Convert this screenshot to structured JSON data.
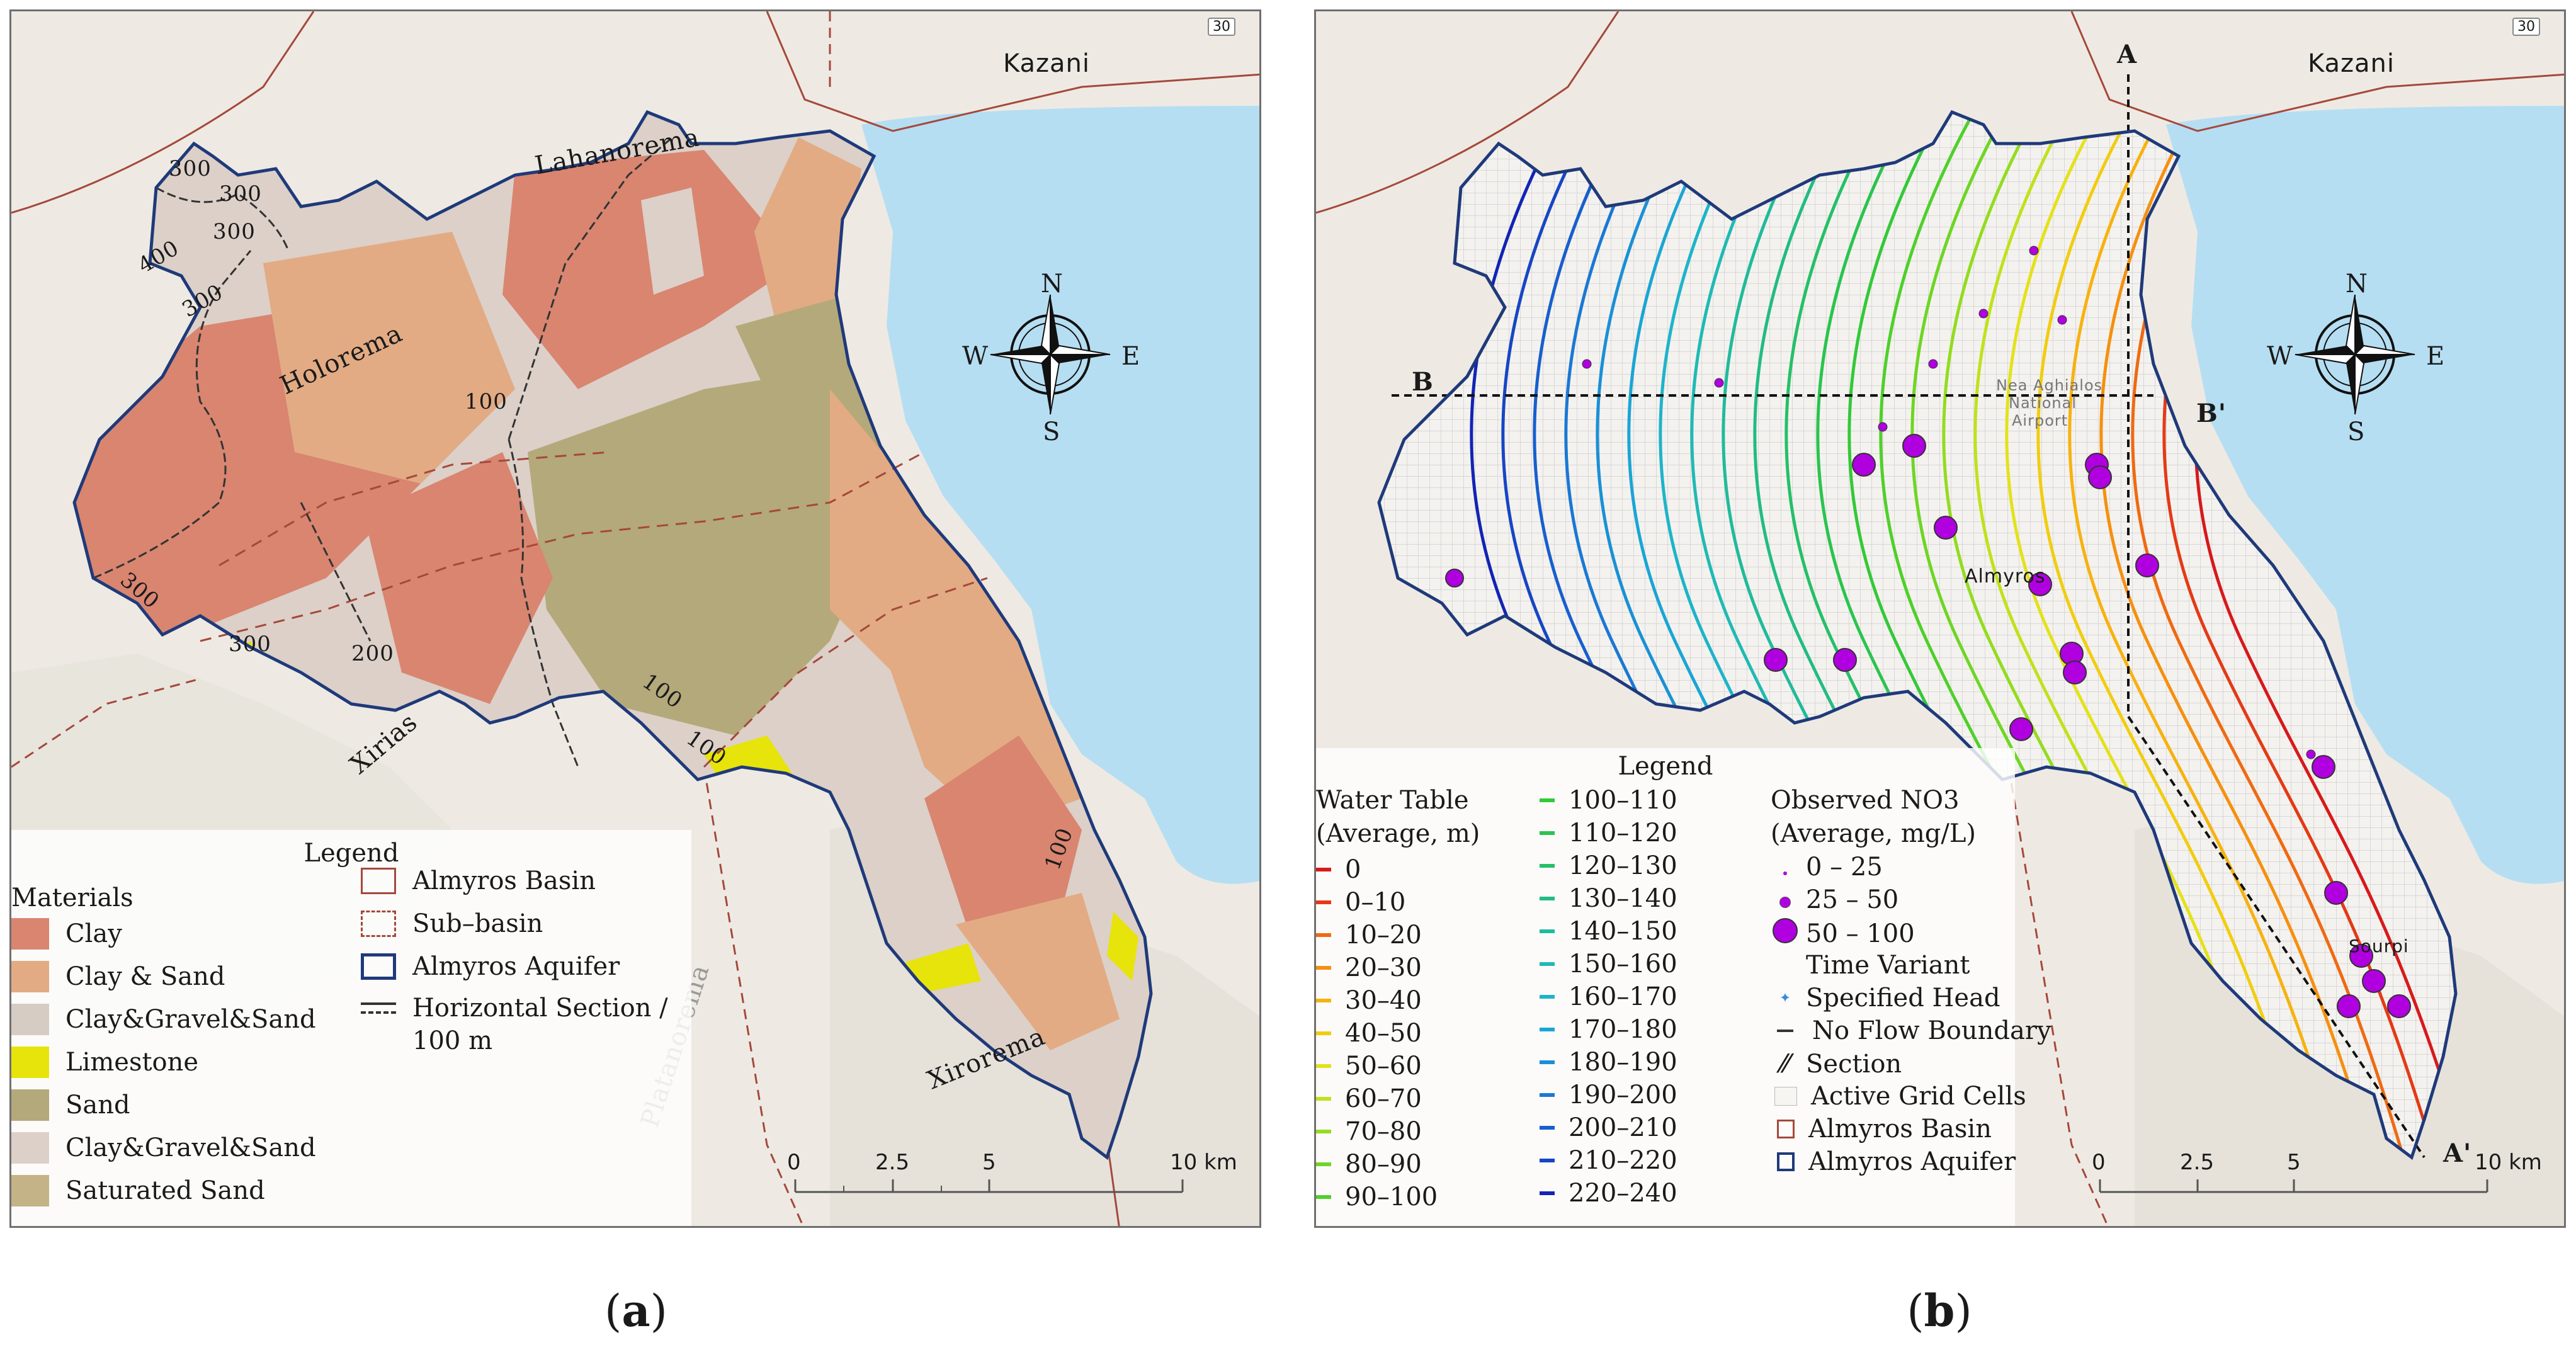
{
  "panel_a": {
    "caption_letter": "a",
    "legend": {
      "title": "Legend",
      "materials_title": "Materials",
      "materials": [
        {
          "label": "Clay",
          "color": "#d98570"
        },
        {
          "label": "Clay & Sand",
          "color": "#e2ab84"
        },
        {
          "label": "Clay&Gravel&Sand",
          "color": "#d7ccc4"
        },
        {
          "label": "Limestone",
          "color": "#e6e40a"
        },
        {
          "label": "Sand",
          "color": "#b4a97a"
        },
        {
          "label": "Clay&Gravel&Sand",
          "color": "#dcd0c8"
        },
        {
          "label": "Saturated Sand",
          "color": "#c3b386"
        }
      ],
      "boundaries": [
        {
          "label": "Almyros Basin",
          "color": "#a5483b"
        },
        {
          "label": "Sub–basin",
          "color": "#a5483b"
        },
        {
          "label": "Almyros Aquifer",
          "color": "#1f3a7a"
        }
      ],
      "section_line1": "Horizontal Section /",
      "section_line2": "100 m"
    },
    "place_labels": [
      "Kazani",
      "Lahanorema",
      "Holorema",
      "Xirias",
      "Platanorema",
      "Xirorema"
    ],
    "contour_labels": [
      "300",
      "300",
      "300",
      "400",
      "300",
      "100",
      "300",
      "300",
      "200",
      "100",
      "100",
      "100"
    ],
    "compass": [
      "N",
      "S",
      "W",
      "E"
    ],
    "scale": [
      "0",
      "2.5",
      "5",
      "10 km"
    ],
    "road_shield": "30"
  },
  "panel_b": {
    "caption_letter": "b",
    "legend": {
      "title": "Legend",
      "water_table_title_1": "Water Table",
      "water_table_title_2": "(Average, m)",
      "water_table": [
        {
          "label": "0",
          "color": "#d7191c"
        },
        {
          "label": "0–10",
          "color": "#e33a16"
        },
        {
          "label": "10–20",
          "color": "#ef6a12"
        },
        {
          "label": "20–30",
          "color": "#f5900f"
        },
        {
          "label": "30–40",
          "color": "#f7b20f"
        },
        {
          "label": "40–50",
          "color": "#f1cd10"
        },
        {
          "label": "50–60",
          "color": "#e3e21a"
        },
        {
          "label": "60–70",
          "color": "#bfe21c"
        },
        {
          "label": "70–80",
          "color": "#93dc1f"
        },
        {
          "label": "80–90",
          "color": "#6ed624"
        },
        {
          "label": "90–100",
          "color": "#4fd02a"
        },
        {
          "label": "100–110",
          "color": "#34c938"
        },
        {
          "label": "110–120",
          "color": "#2ac44e"
        },
        {
          "label": "120–130",
          "color": "#25c068"
        },
        {
          "label": "130–140",
          "color": "#22bc82"
        },
        {
          "label": "140–150",
          "color": "#20bb9b"
        },
        {
          "label": "150–160",
          "color": "#1fbab4"
        },
        {
          "label": "160–170",
          "color": "#1db4c9"
        },
        {
          "label": "170–180",
          "color": "#1aa5d5"
        },
        {
          "label": "180–190",
          "color": "#1a90d6"
        },
        {
          "label": "190–200",
          "color": "#1a78d4"
        },
        {
          "label": "200–210",
          "color": "#185fce"
        },
        {
          "label": "210–220",
          "color": "#1646c4"
        },
        {
          "label": "220–240",
          "color": "#1224b4"
        }
      ],
      "no3_title_1": "Observed NO3",
      "no3_title_2": "(Average, mg/L)",
      "no3": [
        "0 – 25",
        "25 – 50",
        "50 – 100"
      ],
      "no3_color": "#b000e0",
      "tvsh_1": "Time Variant",
      "tvsh_2": "Specified Head",
      "other": [
        "No Flow Boundary",
        "Section",
        "Active Grid Cells",
        "Almyros Basin",
        "Almyros Aquifer"
      ]
    },
    "place_labels": [
      "Kazani",
      "Almyros",
      "Nea Aghialos",
      "National",
      "Airport",
      "Sourpi"
    ],
    "section_labels": [
      "A",
      "A'",
      "B",
      "B'"
    ],
    "compass": [
      "N",
      "S",
      "W",
      "E"
    ],
    "scale": [
      "0",
      "2.5",
      "5",
      "10 km"
    ],
    "road_shield": "30"
  }
}
